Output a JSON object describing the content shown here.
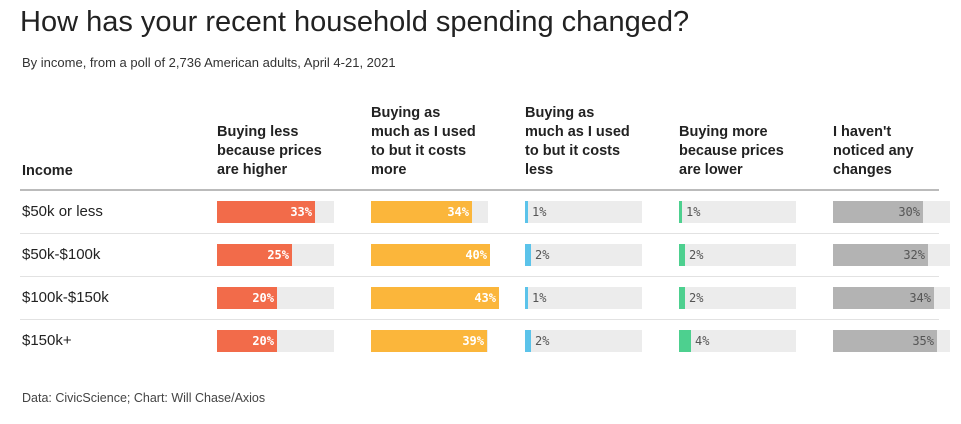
{
  "title": "How has your recent household spending changed?",
  "subtitle": "By income, from a poll of 2,736 American adults, April 4-21, 2021",
  "source": "Data: CivicScience; Chart: Will Chase/Axios",
  "income_header": "Income",
  "colors": {
    "less_higher": "#f26b4a",
    "same_more": "#fbb63b",
    "same_less": "#5bc3ea",
    "more_lower": "#4dd08f",
    "no_change": "#b3b3b3",
    "track": "#ececec"
  },
  "chart_data": {
    "type": "bar",
    "categories": [
      "$50k or less",
      "$50k-$100k",
      "$100k-$150k",
      "$150k+"
    ],
    "xlim": [
      0,
      100
    ],
    "series": [
      {
        "name": "Buying less because prices are higher",
        "header_lines": [
          "Buying less",
          "because prices",
          "are higher"
        ],
        "color_key": "less_higher",
        "values": [
          33,
          25,
          20,
          20
        ],
        "labels": [
          "33%",
          "25%",
          "20%",
          "20%"
        ]
      },
      {
        "name": "Buying as much as I used to but it costs more",
        "header_lines": [
          "Buying as",
          "much as I used",
          "to but it costs",
          "more"
        ],
        "color_key": "same_more",
        "values": [
          34,
          40,
          43,
          39
        ],
        "labels": [
          "34%",
          "40%",
          "43%",
          "39%"
        ]
      },
      {
        "name": "Buying as much as I used to but it costs less",
        "header_lines": [
          "Buying as",
          "much as I used",
          "to but it costs",
          "less"
        ],
        "color_key": "same_less",
        "values": [
          1,
          2,
          1,
          2
        ],
        "labels": [
          "1%",
          "2%",
          "1%",
          "2%"
        ]
      },
      {
        "name": "Buying more because prices are lower",
        "header_lines": [
          "Buying more",
          "because prices",
          "are lower"
        ],
        "color_key": "more_lower",
        "values": [
          1,
          2,
          2,
          4
        ],
        "labels": [
          "1%",
          "2%",
          "2%",
          "4%"
        ]
      },
      {
        "name": "I haven't noticed any changes",
        "header_lines": [
          "I haven't",
          "noticed any",
          "changes"
        ],
        "color_key": "no_change",
        "values": [
          30,
          32,
          34,
          35
        ],
        "labels": [
          "30%",
          "32%",
          "34%",
          "35%"
        ]
      }
    ]
  }
}
